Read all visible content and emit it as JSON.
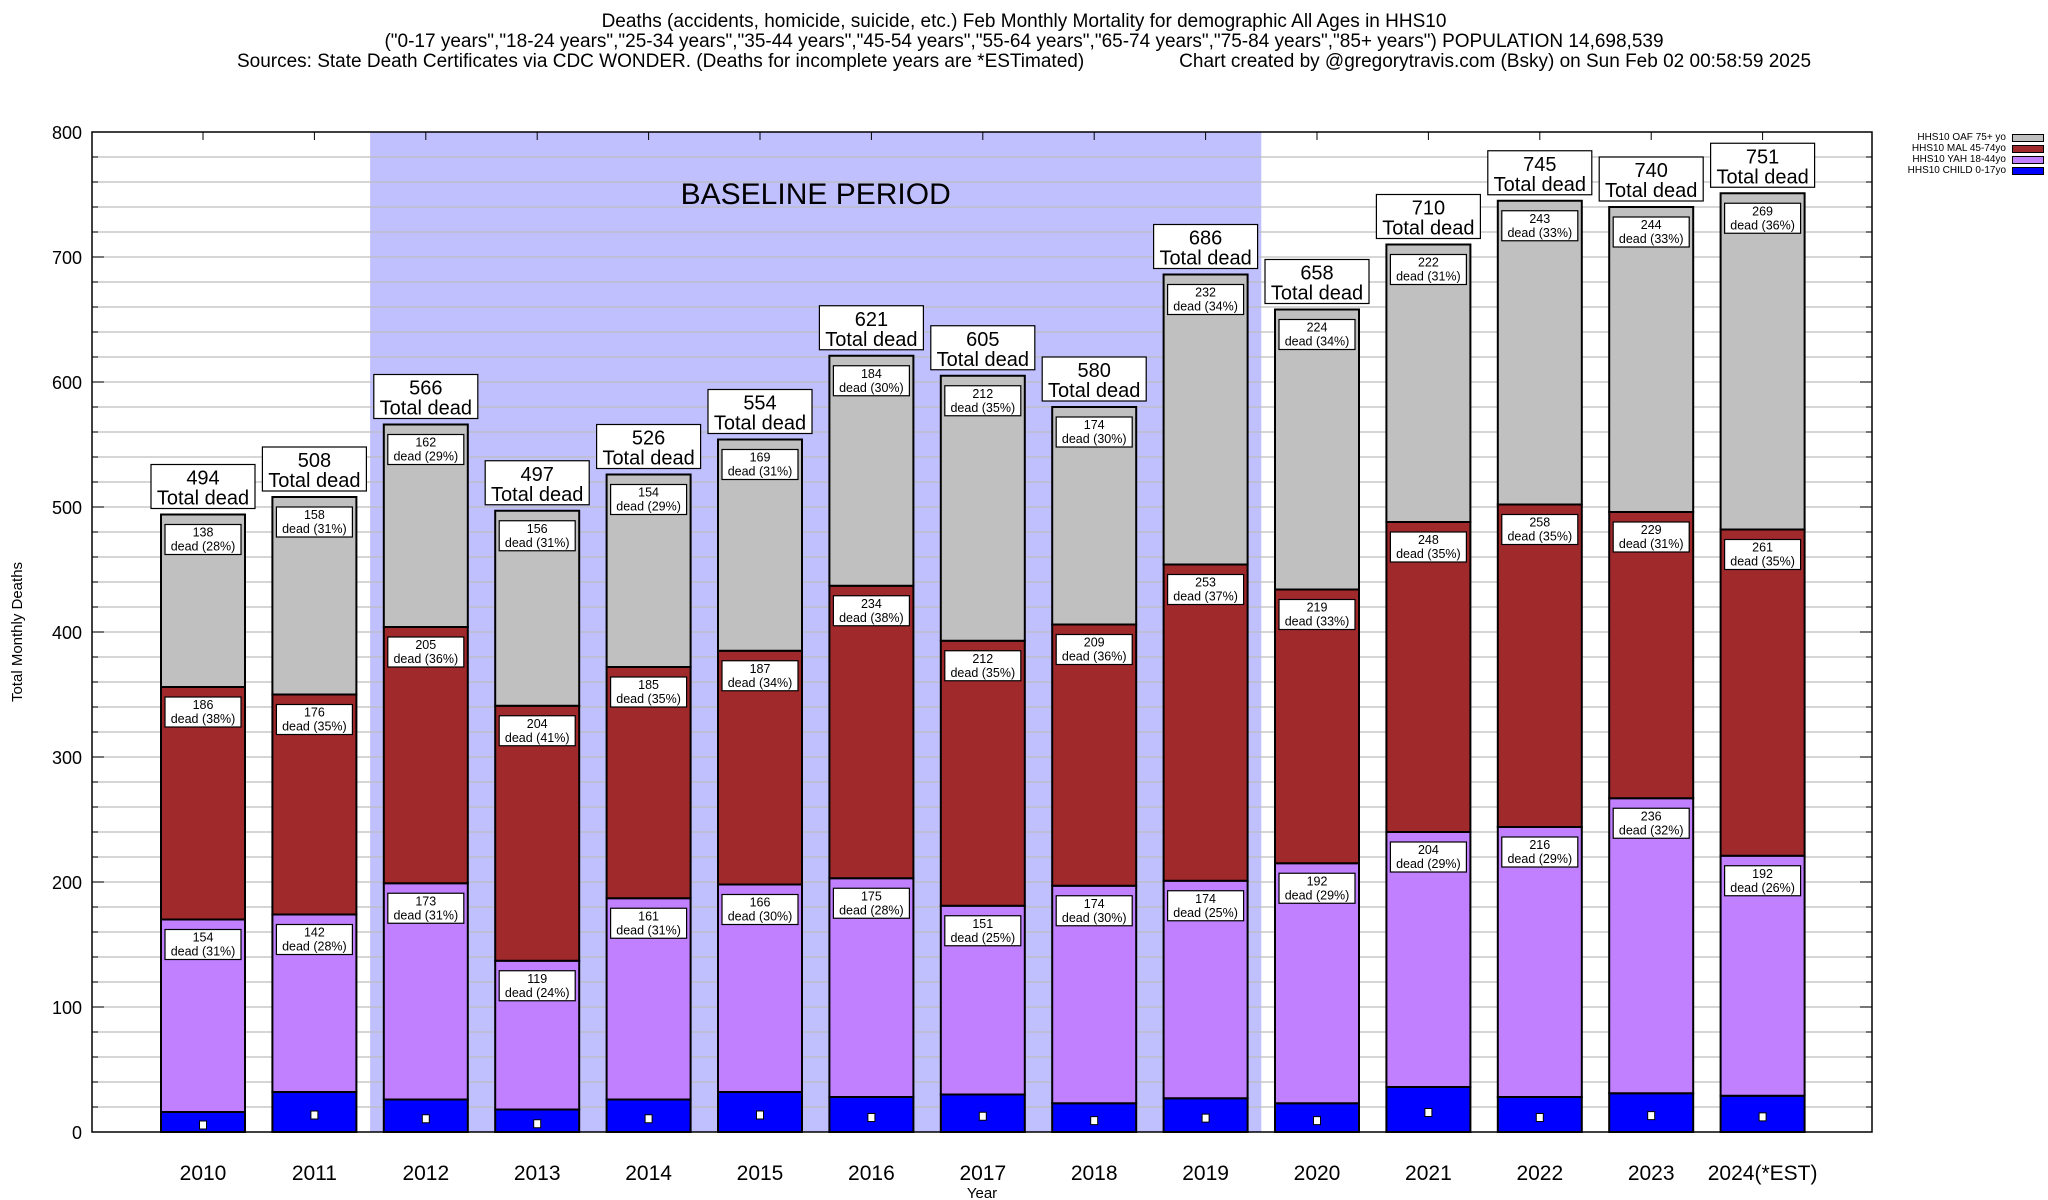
{
  "title": {
    "line1": "Deaths (accidents, homicide, suicide, etc.) Feb Monthly Mortality for demographic All Ages in HHS10",
    "line2": "(\"0-17 years\",\"18-24 years\",\"25-34 years\",\"35-44 years\",\"45-54 years\",\"55-64 years\",\"65-74 years\",\"75-84 years\",\"85+ years\") POPULATION 14,698,539",
    "line3_left": "Sources: State Death Certificates via CDC WONDER. (Deaths for incomplete years are *ESTimated)",
    "line3_right": "Chart created by @gregorytravis.com (Bsky) on Sun Feb 02 00:58:59 2025"
  },
  "chart_data": {
    "type": "bar",
    "stacked": true,
    "title": "Deaths (accidents, homicide, suicide, etc.) Feb Monthly Mortality for demographic All Ages in HHS10",
    "xlabel": "Year",
    "ylabel": "Total Monthly Deaths",
    "ylim": [
      0,
      800
    ],
    "yticks": [
      0,
      100,
      200,
      300,
      400,
      500,
      600,
      700,
      800
    ],
    "grid": true,
    "legend_position": "top-right",
    "categories": [
      "2010",
      "2011",
      "2012",
      "2013",
      "2014",
      "2015",
      "2016",
      "2017",
      "2018",
      "2019",
      "2020",
      "2021",
      "2022",
      "2023",
      "2024(*EST)"
    ],
    "series": [
      {
        "name": "HHS10 CHILD 0-17yo",
        "color": "#0000ff",
        "values": [
          16,
          32,
          26,
          18,
          26,
          32,
          28,
          30,
          23,
          27,
          23,
          36,
          28,
          31,
          29
        ],
        "labeled": false
      },
      {
        "name": "HHS10 YAH 18-44yo",
        "color": "#c080ff",
        "values": [
          154,
          142,
          173,
          119,
          161,
          166,
          175,
          151,
          174,
          174,
          192,
          204,
          216,
          236,
          192
        ],
        "pct": [
          31,
          28,
          31,
          24,
          31,
          30,
          28,
          25,
          30,
          25,
          29,
          29,
          29,
          32,
          26
        ],
        "labeled": true
      },
      {
        "name": "HHS10 MAL 45-74yo",
        "color": "#a0292c",
        "values": [
          186,
          176,
          205,
          204,
          185,
          187,
          234,
          212,
          209,
          253,
          219,
          248,
          258,
          229,
          261
        ],
        "pct": [
          38,
          35,
          36,
          41,
          35,
          34,
          38,
          35,
          36,
          37,
          33,
          35,
          35,
          31,
          35
        ],
        "labeled": true
      },
      {
        "name": "HHS10 OAF 75+ yo",
        "color": "#c0c0c0",
        "values": [
          138,
          158,
          162,
          156,
          154,
          169,
          184,
          212,
          174,
          232,
          224,
          222,
          243,
          244,
          269
        ],
        "pct": [
          28,
          31,
          29,
          31,
          29,
          31,
          30,
          35,
          30,
          34,
          34,
          31,
          33,
          33,
          36
        ],
        "labeled": true
      }
    ],
    "totals": [
      494,
      508,
      566,
      497,
      526,
      554,
      621,
      605,
      580,
      686,
      658,
      710,
      745,
      740,
      751
    ],
    "total_label_suffix": "Total dead",
    "segment_label_word": "dead",
    "annotation": {
      "text": "BASELINE PERIOD",
      "start_category": "2012",
      "end_category": "2019",
      "color": "#c0c0ff"
    }
  },
  "legend": {
    "items": [
      {
        "label": "HHS10 OAF 75+ yo",
        "color": "#c0c0c0"
      },
      {
        "label": "HHS10 MAL 45-74yo",
        "color": "#a0292c"
      },
      {
        "label": "HHS10 YAH 18-44yo",
        "color": "#c080ff"
      },
      {
        "label": "HHS10 CHILD 0-17yo",
        "color": "#0000ff"
      }
    ]
  }
}
